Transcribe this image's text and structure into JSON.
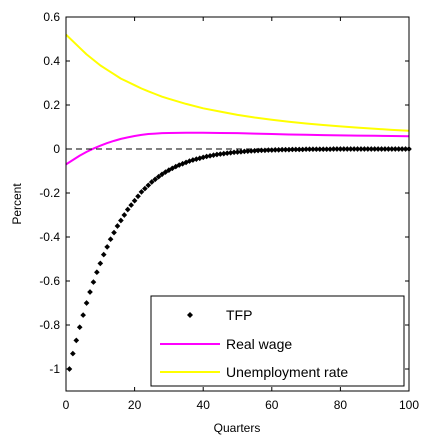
{
  "chart_data": {
    "type": "line",
    "title": "",
    "xlabel": "Quarters",
    "ylabel": "Percent",
    "xlim": [
      0,
      100
    ],
    "ylim": [
      -1.1,
      0.6
    ],
    "xticks": [
      0,
      20,
      40,
      60,
      80,
      100
    ],
    "yticks": [
      -1,
      -0.8,
      -0.6,
      -0.4,
      -0.2,
      0,
      0.2,
      0.4,
      0.6
    ],
    "xtick_labels": [
      "0",
      "20",
      "40",
      "60",
      "80",
      "100"
    ],
    "ytick_labels": [
      "-1",
      "-0.8",
      "-0.6",
      "-0.4",
      "-0.2",
      "0",
      "0.2",
      "0.4",
      "0.6"
    ],
    "grid": false,
    "zero_line": {
      "y": 0,
      "style": "dashed",
      "color": "#000000"
    },
    "legend": {
      "position": "bottom-right"
    },
    "series": [
      {
        "name": "TFP",
        "style": "markers",
        "marker": "diamond",
        "color": "#000000",
        "x": [
          1,
          2,
          3,
          4,
          5,
          6,
          7,
          8,
          9,
          10,
          11,
          12,
          13,
          14,
          15,
          16,
          17,
          18,
          19,
          20,
          21,
          22,
          23,
          24,
          25,
          26,
          27,
          28,
          29,
          30,
          31,
          32,
          33,
          34,
          35,
          36,
          37,
          38,
          39,
          40,
          41,
          42,
          43,
          44,
          45,
          46,
          47,
          48,
          49,
          50,
          51,
          52,
          53,
          54,
          55,
          56,
          57,
          58,
          59,
          60,
          61,
          62,
          63,
          64,
          65,
          66,
          67,
          68,
          69,
          70,
          71,
          72,
          73,
          74,
          75,
          76,
          77,
          78,
          79,
          80,
          81,
          82,
          83,
          84,
          85,
          86,
          87,
          88,
          89,
          90,
          91,
          92,
          93,
          94,
          95,
          96,
          97,
          98,
          99,
          100
        ],
        "values": [
          -1.0,
          -0.93,
          -0.87,
          -0.81,
          -0.755,
          -0.7,
          -0.65,
          -0.605,
          -0.56,
          -0.52,
          -0.48,
          -0.445,
          -0.41,
          -0.38,
          -0.35,
          -0.325,
          -0.3,
          -0.275,
          -0.255,
          -0.235,
          -0.215,
          -0.195,
          -0.18,
          -0.165,
          -0.15,
          -0.138,
          -0.126,
          -0.115,
          -0.105,
          -0.096,
          -0.088,
          -0.08,
          -0.073,
          -0.067,
          -0.061,
          -0.055,
          -0.05,
          -0.046,
          -0.042,
          -0.038,
          -0.034,
          -0.031,
          -0.028,
          -0.025,
          -0.023,
          -0.021,
          -0.019,
          -0.017,
          -0.015,
          -0.014,
          -0.013,
          -0.011,
          -0.01,
          -0.009,
          -0.008,
          -0.007,
          -0.006,
          -0.006,
          -0.005,
          -0.005,
          -0.004,
          -0.004,
          -0.003,
          -0.003,
          -0.003,
          -0.002,
          -0.002,
          -0.002,
          -0.002,
          -0.001,
          -0.001,
          -0.001,
          -0.001,
          -0.001,
          -0.001,
          -0.001,
          -0.001,
          0,
          0,
          0,
          0,
          0,
          0,
          0,
          0,
          0,
          0,
          0,
          0,
          0,
          0,
          0,
          0,
          0,
          0,
          0,
          0,
          0,
          0,
          0
        ]
      },
      {
        "name": "Real wage",
        "style": "line",
        "color": "#ff00ff",
        "x": [
          0,
          2,
          4,
          6,
          8,
          10,
          12,
          14,
          16,
          18,
          20,
          22,
          24,
          26,
          28,
          30,
          35,
          40,
          45,
          50,
          55,
          60,
          65,
          70,
          75,
          80,
          85,
          90,
          95,
          100
        ],
        "values": [
          -0.07,
          -0.05,
          -0.03,
          -0.013,
          0.002,
          0.015,
          0.027,
          0.037,
          0.046,
          0.053,
          0.059,
          0.064,
          0.068,
          0.07,
          0.072,
          0.073,
          0.074,
          0.074,
          0.073,
          0.072,
          0.07,
          0.068,
          0.066,
          0.065,
          0.063,
          0.062,
          0.061,
          0.06,
          0.059,
          0.058
        ]
      },
      {
        "name": "Unemployment rate",
        "style": "line",
        "color": "#ffff00",
        "x": [
          0,
          2,
          4,
          6,
          8,
          10,
          12,
          14,
          16,
          18,
          20,
          22,
          24,
          26,
          28,
          30,
          35,
          40,
          45,
          50,
          55,
          60,
          65,
          70,
          75,
          80,
          85,
          90,
          95,
          100
        ],
        "values": [
          0.52,
          0.49,
          0.46,
          0.43,
          0.405,
          0.38,
          0.36,
          0.34,
          0.32,
          0.305,
          0.29,
          0.275,
          0.262,
          0.25,
          0.238,
          0.228,
          0.205,
          0.185,
          0.17,
          0.155,
          0.143,
          0.133,
          0.124,
          0.116,
          0.109,
          0.103,
          0.097,
          0.092,
          0.087,
          0.083
        ]
      }
    ]
  }
}
